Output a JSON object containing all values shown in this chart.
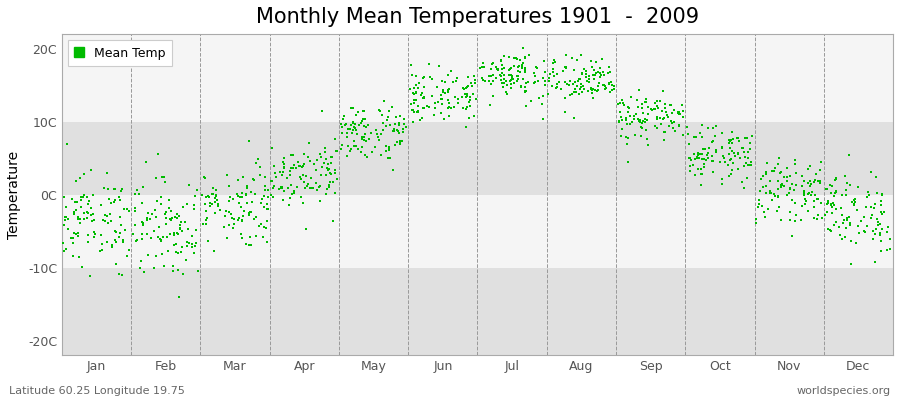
{
  "title": "Monthly Mean Temperatures 1901  -  2009",
  "ylabel": "Temperature",
  "yticks": [
    -20,
    -10,
    0,
    10,
    20
  ],
  "ytick_labels": [
    "-20C",
    "-10C",
    "0C",
    "10C",
    "20C"
  ],
  "ylim": [
    -22,
    22
  ],
  "months": [
    "Jan",
    "Feb",
    "Mar",
    "Apr",
    "May",
    "Jun",
    "Jul",
    "Aug",
    "Sep",
    "Oct",
    "Nov",
    "Dec"
  ],
  "dot_color": "#00bb00",
  "background_color": "#ebebeb",
  "band_color_light": "#f5f5f5",
  "band_color_dark": "#e0e0e0",
  "figure_background": "#ffffff",
  "legend_label": "Mean Temp",
  "footer_left": "Latitude 60.25 Longitude 19.75",
  "footer_right": "worldspecies.org",
  "monthly_means": [
    -3.5,
    -4.5,
    -1.5,
    3.0,
    8.5,
    13.5,
    16.5,
    15.5,
    10.5,
    5.5,
    0.5,
    -2.5
  ],
  "monthly_stds": [
    3.2,
    3.5,
    2.8,
    2.2,
    2.0,
    1.8,
    1.8,
    1.6,
    1.6,
    1.8,
    2.0,
    2.8
  ],
  "n_years": 109,
  "title_fontsize": 15,
  "axis_fontsize": 10,
  "tick_fontsize": 9,
  "footer_fontsize": 8,
  "dot_size": 3,
  "xlim_left": 0.0,
  "xlim_right": 12.0
}
